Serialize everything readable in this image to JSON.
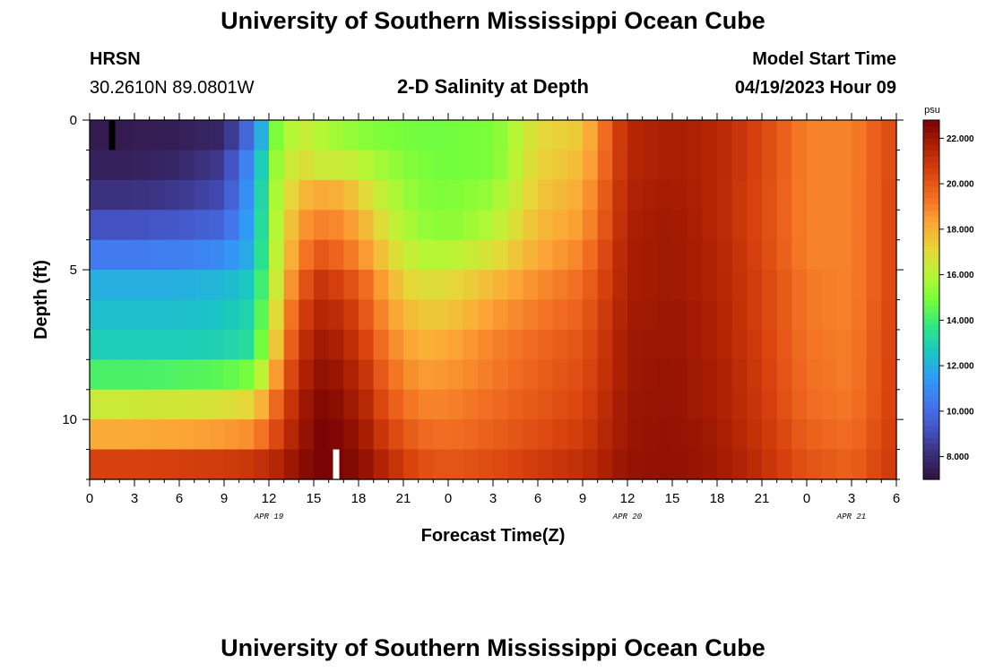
{
  "header": {
    "title_top": "University of Southern Mississippi Ocean Cube",
    "station": "HRSN",
    "coords": "30.2610N  89.0801W",
    "plot_title": "2-D Salinity at Depth",
    "model_label": "Model Start Time",
    "model_time": "04/19/2023 Hour 09",
    "title_bottom": "University of Southern Mississippi Ocean Cube"
  },
  "colors": {
    "palette": [
      "#30123b",
      "#3a2f7a",
      "#4454c4",
      "#4377ee",
      "#2f9df5",
      "#1ac7c2",
      "#2ee884",
      "#76fe3a",
      "#b7f735",
      "#e8d539",
      "#fca636",
      "#f26e22",
      "#d9430e",
      "#ae2103",
      "#7a0403"
    ]
  },
  "chart_data": {
    "type": "heatmap",
    "title": "2-D Salinity at Depth",
    "xlabel": "Forecast Time(Z)",
    "ylabel": "Depth (ft)",
    "xlim": [
      0,
      54
    ],
    "ylim": [
      0,
      12
    ],
    "x_ticks": [
      0,
      3,
      6,
      9,
      12,
      15,
      18,
      21,
      24,
      27,
      30,
      33,
      36,
      39,
      42,
      45,
      48,
      51,
      54
    ],
    "x_tick_labels": [
      "0",
      "3",
      "6",
      "9",
      "12",
      "15",
      "18",
      "21",
      "0",
      "3",
      "6",
      "9",
      "12",
      "15",
      "18",
      "21",
      "0",
      "3",
      "6"
    ],
    "y_ticks": [
      0,
      5,
      10
    ],
    "y_tick_labels": [
      "0",
      "5",
      "10"
    ],
    "date_labels": [
      {
        "x": 12,
        "label": "APR 19"
      },
      {
        "x": 36,
        "label": "APR 20"
      },
      {
        "x": 51,
        "label": "APR 21"
      }
    ],
    "depth_levels": [
      0.5,
      1.5,
      2.5,
      3.5,
      4.5,
      5.5,
      6.5,
      7.5,
      8.5,
      9.5,
      10.5,
      11.5
    ],
    "hours": [
      0,
      3,
      6,
      9,
      11,
      12.5,
      14,
      15.5,
      17,
      18.5,
      20,
      22,
      24,
      27,
      30,
      33,
      36,
      39,
      42,
      45,
      48,
      51,
      54
    ],
    "salinity": [
      [
        7.4,
        7.4,
        7.5,
        7.8,
        10.5,
        15.0,
        16.5,
        16.0,
        15.5,
        15.2,
        15.0,
        14.8,
        14.8,
        15.0,
        17.0,
        17.5,
        21.5,
        21.8,
        21.5,
        20.5,
        19.0,
        19.0,
        20.5
      ],
      [
        7.6,
        7.6,
        7.8,
        8.5,
        11.5,
        15.5,
        17.0,
        16.5,
        16.5,
        16.0,
        15.5,
        15.0,
        14.8,
        15.0,
        17.2,
        17.8,
        21.5,
        21.8,
        21.5,
        20.5,
        19.0,
        19.0,
        20.5
      ],
      [
        8.2,
        8.2,
        8.4,
        9.0,
        11.8,
        15.8,
        17.8,
        18.2,
        18.0,
        17.0,
        16.0,
        15.2,
        15.0,
        15.5,
        17.5,
        18.2,
        21.6,
        21.9,
        21.5,
        20.4,
        19.0,
        19.0,
        20.6
      ],
      [
        9.2,
        9.2,
        9.4,
        9.8,
        12.0,
        16.0,
        18.5,
        19.0,
        18.8,
        17.8,
        16.5,
        15.5,
        15.2,
        16.0,
        17.8,
        18.5,
        21.7,
        22.0,
        21.5,
        20.4,
        19.0,
        19.0,
        20.6
      ],
      [
        10.5,
        10.5,
        10.6,
        11.0,
        12.2,
        16.2,
        19.0,
        20.0,
        19.5,
        18.5,
        17.2,
        16.0,
        16.0,
        16.8,
        18.2,
        19.0,
        21.8,
        22.0,
        21.6,
        20.5,
        19.0,
        19.0,
        20.6
      ],
      [
        12.0,
        12.0,
        12.0,
        12.2,
        12.8,
        16.5,
        19.8,
        21.0,
        20.5,
        19.5,
        18.0,
        16.8,
        17.0,
        17.8,
        18.8,
        19.5,
        21.8,
        22.0,
        21.6,
        20.6,
        19.2,
        19.0,
        20.6
      ],
      [
        12.4,
        12.4,
        12.4,
        12.6,
        13.2,
        17.0,
        20.5,
        21.5,
        21.2,
        20.0,
        18.5,
        17.5,
        17.5,
        18.5,
        19.2,
        19.8,
        21.9,
        22.1,
        21.7,
        20.6,
        19.2,
        19.0,
        20.7
      ],
      [
        12.8,
        12.8,
        12.8,
        13.0,
        13.5,
        17.5,
        21.0,
        22.0,
        21.6,
        20.5,
        19.0,
        18.0,
        18.2,
        19.0,
        19.6,
        20.1,
        22.0,
        22.1,
        21.7,
        20.7,
        19.3,
        19.1,
        20.7
      ],
      [
        14.2,
        14.2,
        14.3,
        14.5,
        15.0,
        18.5,
        21.4,
        22.3,
        22.0,
        21.0,
        19.5,
        18.5,
        18.6,
        19.2,
        19.8,
        20.3,
        22.0,
        22.2,
        21.8,
        20.8,
        19.4,
        19.1,
        20.8
      ],
      [
        16.5,
        16.5,
        16.6,
        16.8,
        17.2,
        19.6,
        21.8,
        22.6,
        22.3,
        21.4,
        20.0,
        19.0,
        19.0,
        19.5,
        20.0,
        20.5,
        22.1,
        22.2,
        21.8,
        20.9,
        19.5,
        19.2,
        20.8
      ],
      [
        18.2,
        18.2,
        18.3,
        18.5,
        18.8,
        20.4,
        22.0,
        22.8,
        22.6,
        21.8,
        20.6,
        19.6,
        19.4,
        19.8,
        20.3,
        20.8,
        22.1,
        22.3,
        21.9,
        21.0,
        19.8,
        19.4,
        20.9
      ],
      [
        20.6,
        20.6,
        20.7,
        20.8,
        21.0,
        21.5,
        22.3,
        23.0,
        22.8,
        22.2,
        21.3,
        20.3,
        20.0,
        20.3,
        20.8,
        21.2,
        22.2,
        22.3,
        22.0,
        21.2,
        20.1,
        19.7,
        21.0
      ]
    ],
    "markers": [
      {
        "hour": 1.5,
        "depth": 0.5,
        "color": "#000000"
      },
      {
        "hour": 16.5,
        "depth": 11.5,
        "color": "#ffffff"
      }
    ],
    "colorbar": {
      "unit": "psu",
      "range": [
        7.0,
        22.8
      ],
      "ticks": [
        8.0,
        10.0,
        12.0,
        14.0,
        16.0,
        18.0,
        20.0,
        22.0
      ],
      "tick_labels": [
        "8.000",
        "10.000",
        "12.000",
        "14.000",
        "16.000",
        "18.000",
        "20.000",
        "22.000"
      ]
    }
  }
}
